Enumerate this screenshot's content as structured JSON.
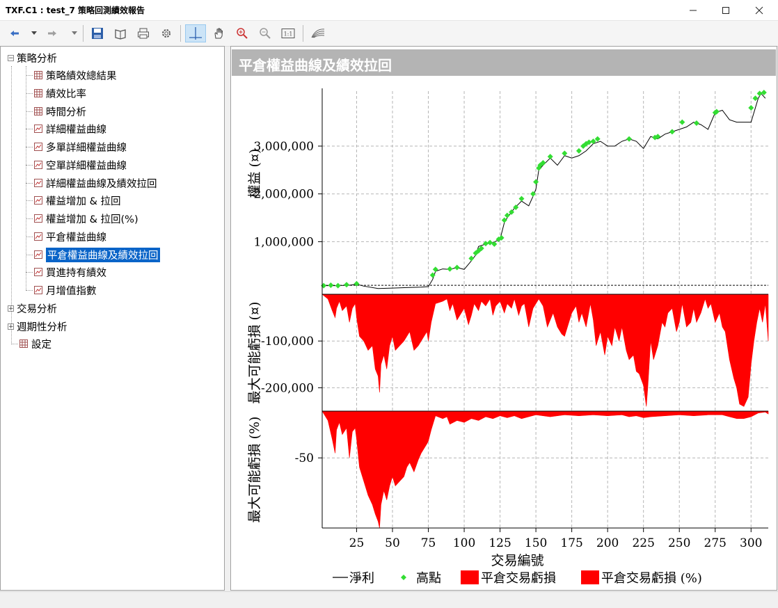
{
  "window": {
    "title": "TXF.C1 : test_7 策略回測績效報告"
  },
  "tree": {
    "groups": [
      {
        "label": "策略分析",
        "expanded": true,
        "items": [
          {
            "label": "策略績效總結果",
            "icon": "table-icon"
          },
          {
            "label": "績效比率",
            "icon": "table-icon"
          },
          {
            "label": "時間分析",
            "icon": "table-icon"
          },
          {
            "label": "詳細權益曲線",
            "icon": "chart-icon"
          },
          {
            "label": "多單詳細權益曲線",
            "icon": "chart-icon"
          },
          {
            "label": "空單詳細權益曲線",
            "icon": "chart-icon"
          },
          {
            "label": "詳細權益曲線及績效拉回",
            "icon": "chart-icon"
          },
          {
            "label": "權益增加 & 拉回",
            "icon": "chart-icon"
          },
          {
            "label": "權益增加 & 拉回(%)",
            "icon": "chart-icon"
          },
          {
            "label": "平倉權益曲線",
            "icon": "chart-icon"
          },
          {
            "label": "平倉權益曲線及績效拉回",
            "icon": "chart-icon",
            "selected": true
          },
          {
            "label": "買進持有績效",
            "icon": "chart-icon"
          },
          {
            "label": "月增值指數",
            "icon": "chart-icon"
          }
        ]
      },
      {
        "label": "交易分析",
        "expanded": false
      },
      {
        "label": "週期性分析",
        "expanded": false
      }
    ],
    "settings": {
      "label": "設定",
      "icon": "table-icon"
    }
  },
  "panel": {
    "title": "平倉權益曲線及績效拉回"
  },
  "chart_data": {
    "type": "line",
    "x_label": "交易編號",
    "x_ticks": [
      25,
      50,
      75,
      100,
      125,
      150,
      175,
      200,
      225,
      250,
      275,
      300
    ],
    "x_range": [
      1,
      312
    ],
    "panes": [
      {
        "name": "equity",
        "ylabel": "權益 (¤)",
        "y_ticks": [
          {
            "v": 1000000,
            "label": "1,000,000"
          },
          {
            "v": 2000000,
            "label": "2,000,000"
          },
          {
            "v": 3000000,
            "label": "3,000,000"
          }
        ],
        "ylim": [
          -100000,
          4150000
        ]
      },
      {
        "name": "drawdown",
        "ylabel": "最大可能虧損 (¤)",
        "y_ticks": [
          {
            "v": -100000,
            "label": "-100,000"
          },
          {
            "v": -200000,
            "label": "-200,000"
          }
        ],
        "ylim": [
          -250000,
          0
        ]
      },
      {
        "name": "drawdown_pct",
        "ylabel": "最大可能虧損 (%)",
        "y_ticks": [
          {
            "v": -50,
            "label": "-50"
          }
        ],
        "ylim": [
          -125,
          0
        ]
      }
    ],
    "series": [
      {
        "name": "淨利",
        "type": "line",
        "color": "#000000",
        "x": [
          1,
          10,
          20,
          25,
          30,
          40,
          50,
          60,
          70,
          75,
          78,
          80,
          85,
          90,
          95,
          100,
          105,
          108,
          110,
          115,
          120,
          125,
          128,
          130,
          135,
          140,
          145,
          148,
          150,
          152,
          155,
          160,
          165,
          170,
          175,
          180,
          185,
          190,
          195,
          200,
          205,
          210,
          215,
          220,
          225,
          230,
          235,
          240,
          245,
          250,
          255,
          260,
          265,
          270,
          275,
          280,
          285,
          290,
          295,
          300,
          303,
          305,
          307,
          310
        ],
        "y": [
          80000,
          80000,
          90000,
          110000,
          70000,
          20000,
          30000,
          40000,
          50000,
          60000,
          210000,
          380000,
          430000,
          420000,
          460000,
          420000,
          600000,
          720000,
          900000,
          950000,
          980000,
          1050000,
          1400000,
          1500000,
          1700000,
          1850000,
          1750000,
          1950000,
          2100000,
          2500000,
          2600000,
          2750000,
          2600000,
          2800000,
          2750000,
          2800000,
          2900000,
          3050000,
          3100000,
          3000000,
          3000000,
          3100000,
          3150000,
          3100000,
          2950000,
          3200000,
          3150000,
          3250000,
          3300000,
          3350000,
          3400000,
          3500000,
          3450000,
          3350000,
          3700000,
          3750000,
          3550000,
          3500000,
          3500000,
          3500000,
          3800000,
          4000000,
          4100000,
          4000000
        ]
      },
      {
        "name": "高點",
        "type": "scatter",
        "color": "#33dd33",
        "x": [
          2,
          7,
          12,
          18,
          25,
          78,
          80,
          90,
          95,
          105,
          108,
          110,
          112,
          115,
          118,
          121,
          124,
          126,
          128,
          130,
          133,
          136,
          140,
          148,
          150,
          152,
          153,
          155,
          160,
          170,
          180,
          183,
          185,
          187,
          190,
          193,
          215,
          233,
          235,
          245,
          252,
          262,
          275,
          276,
          300,
          303,
          306,
          309
        ],
        "y": [
          80000,
          90000,
          80000,
          100000,
          120000,
          300000,
          420000,
          430000,
          460000,
          650000,
          760000,
          810000,
          860000,
          960000,
          980000,
          950000,
          1050000,
          1080000,
          1450000,
          1550000,
          1620000,
          1720000,
          1900000,
          2000000,
          2250000,
          2540000,
          2600000,
          2650000,
          2780000,
          2850000,
          2900000,
          3000000,
          3050000,
          3080000,
          3100000,
          3150000,
          3150000,
          3180000,
          3200000,
          3300000,
          3500000,
          3480000,
          3700000,
          3720000,
          3800000,
          4000000,
          4100000,
          4120000
        ]
      },
      {
        "name": "平倉交易虧損",
        "type": "area",
        "color": "#ff0000",
        "x": [
          1,
          5,
          8,
          10,
          11,
          13,
          15,
          18,
          20,
          22,
          24,
          25,
          27,
          30,
          33,
          36,
          38,
          40,
          41,
          42,
          44,
          46,
          48,
          50,
          52,
          55,
          58,
          60,
          62,
          65,
          68,
          70,
          72,
          74,
          75,
          77,
          80,
          85,
          88,
          90,
          92,
          95,
          98,
          100,
          103,
          105,
          107,
          110,
          112,
          115,
          118,
          120,
          122,
          125,
          128,
          130,
          133,
          135,
          138,
          140,
          142,
          145,
          148,
          150,
          152,
          155,
          158,
          160,
          162,
          165,
          168,
          170,
          172,
          175,
          178,
          180,
          182,
          185,
          188,
          190,
          192,
          195,
          198,
          200,
          203,
          205,
          208,
          210,
          213,
          215,
          218,
          220,
          222,
          225,
          227,
          228,
          230,
          232,
          235,
          238,
          240,
          242,
          245,
          248,
          250,
          252,
          255,
          258,
          260,
          262,
          265,
          268,
          270,
          272,
          275,
          278,
          280,
          282,
          285,
          288,
          290,
          292,
          295,
          298,
          300,
          302,
          304,
          306,
          308,
          310,
          312
        ],
        "y": [
          0,
          -10000,
          -35000,
          -50000,
          -30000,
          -15000,
          -35000,
          -25000,
          -60000,
          -30000,
          -20000,
          -50000,
          -90000,
          -100000,
          -120000,
          -110000,
          -160000,
          -175000,
          -210000,
          -150000,
          -130000,
          -160000,
          -110000,
          -90000,
          -120000,
          -110000,
          -100000,
          -90000,
          -80000,
          -120000,
          -110000,
          -100000,
          -90000,
          -80000,
          -100000,
          -60000,
          -20000,
          -15000,
          -10000,
          -35000,
          -20000,
          -55000,
          -40000,
          -30000,
          -65000,
          -45000,
          -20000,
          -35000,
          -15000,
          -25000,
          -10000,
          -45000,
          -25000,
          -15000,
          -40000,
          -20000,
          -30000,
          -10000,
          -45000,
          -25000,
          -20000,
          -70000,
          -30000,
          -20000,
          -10000,
          -25000,
          -70000,
          -55000,
          -40000,
          -70000,
          -85000,
          -90000,
          -70000,
          -40000,
          -25000,
          -60000,
          -40000,
          -70000,
          -20000,
          -55000,
          -110000,
          -80000,
          -130000,
          -90000,
          -110000,
          -70000,
          -100000,
          -70000,
          -120000,
          -140000,
          -130000,
          -165000,
          -170000,
          -195000,
          -240000,
          -200000,
          -100000,
          -140000,
          -110000,
          -60000,
          -70000,
          -40000,
          -30000,
          -80000,
          -60000,
          -20000,
          -70000,
          -60000,
          -30000,
          -60000,
          -40000,
          -10000,
          -30000,
          -20000,
          -60000,
          -40000,
          -70000,
          -80000,
          -140000,
          -180000,
          -200000,
          -235000,
          -240000,
          -220000,
          -150000,
          -100000,
          -60000,
          -30000,
          -60000,
          -20000,
          -100000
        ]
      },
      {
        "name": "平倉交易虧損 (%)",
        "type": "area",
        "color": "#ff0000",
        "x": [
          1,
          5,
          8,
          10,
          11,
          13,
          15,
          18,
          20,
          22,
          24,
          25,
          27,
          30,
          33,
          36,
          38,
          40,
          41,
          42,
          44,
          46,
          48,
          50,
          52,
          55,
          58,
          60,
          62,
          65,
          68,
          70,
          72,
          74,
          75,
          77,
          80,
          85,
          88,
          90,
          95,
          100,
          105,
          110,
          115,
          120,
          125,
          130,
          135,
          140,
          150,
          160,
          170,
          180,
          190,
          200,
          210,
          215,
          220,
          225,
          230,
          240,
          250,
          260,
          270,
          280,
          285,
          290,
          295,
          300,
          305,
          310,
          312
        ],
        "y": [
          0,
          -10,
          -30,
          -45,
          -20,
          -12,
          -25,
          -18,
          -50,
          -22,
          -18,
          -30,
          -60,
          -75,
          -90,
          -100,
          -110,
          -118,
          -125,
          -100,
          -85,
          -95,
          -80,
          -70,
          -80,
          -75,
          -70,
          -60,
          -55,
          -65,
          -52,
          -45,
          -40,
          -35,
          -32,
          -20,
          -5,
          -8,
          -6,
          -14,
          -10,
          -12,
          -8,
          -10,
          -6,
          -8,
          -5,
          -7,
          -5,
          -8,
          -4,
          -6,
          -4,
          -5,
          -4,
          -5,
          -4,
          -6,
          -5,
          -7,
          -6,
          -5,
          -4,
          -5,
          -4,
          -4,
          -6,
          -8,
          -8,
          -6,
          -2,
          -1,
          -3
        ]
      }
    ],
    "legend": [
      {
        "label": "淨利",
        "symbol": "line"
      },
      {
        "label": "高點",
        "symbol": "diamond"
      },
      {
        "label": "平倉交易虧損",
        "symbol": "box"
      },
      {
        "label": "平倉交易虧損 (%)",
        "symbol": "box"
      }
    ],
    "grid": true
  }
}
